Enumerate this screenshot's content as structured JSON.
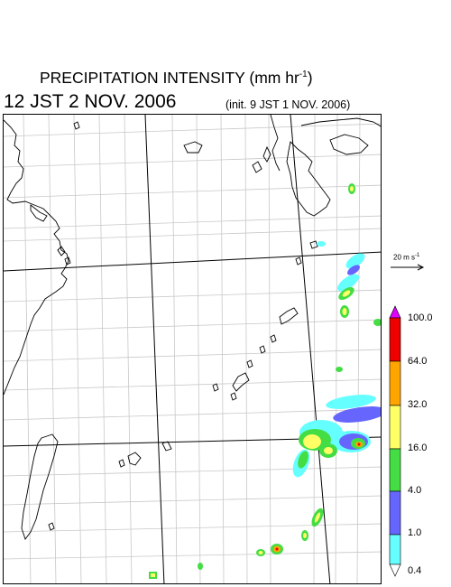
{
  "header": {
    "title": "PRECIPITATION INTENSITY (mm hr",
    "title_unit_exp": "-1",
    "title_close": ")",
    "valid_time": "12 JST 2 NOV. 2006",
    "init_time": "(init. 9 JST 1 NOV. 2006)"
  },
  "vector_scale": {
    "label": "20 m s",
    "label_exp": "-1"
  },
  "legend": {
    "values": [
      "100.0",
      "64.0",
      "32.0",
      "16.0",
      "4.0",
      "1.0",
      "0.4"
    ],
    "colors": [
      "#dd00ff",
      "#ee0000",
      "#ffa500",
      "#ffff66",
      "#44dd44",
      "#6666ff",
      "#66ffff",
      "#ffffff"
    ]
  }
}
